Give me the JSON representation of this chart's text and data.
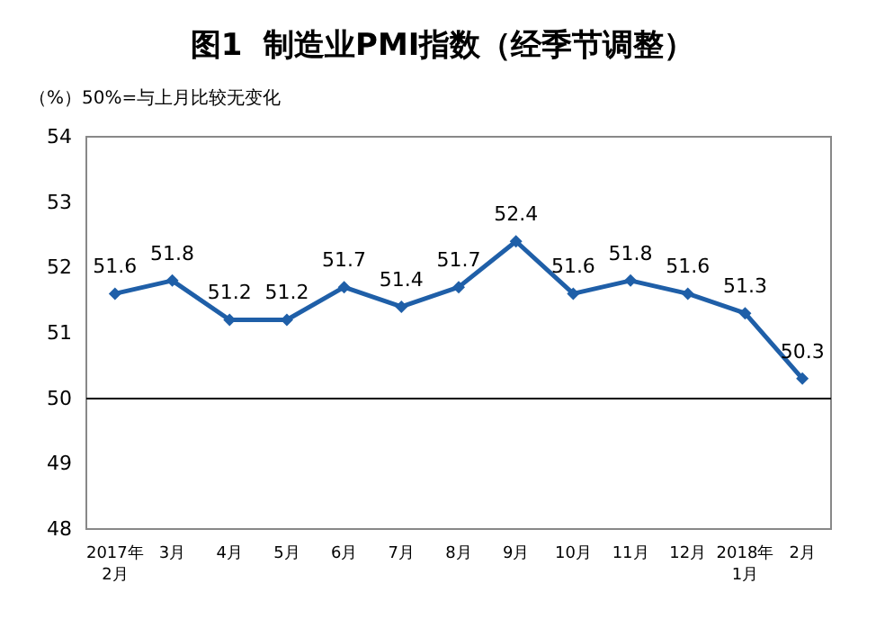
{
  "chart_data": {
    "type": "line",
    "title": "图1  制造业PMI指数（经季节调整）",
    "annotations": [
      "（%）50%=与上月比较无变化"
    ],
    "categories": [
      "2017年\n2月",
      "3月",
      "4月",
      "5月",
      "6月",
      "7月",
      "8月",
      "9月",
      "10月",
      "11月",
      "12月",
      "2018年\n1月",
      "2月"
    ],
    "series": [
      {
        "color": "#1f5fa8",
        "values": [
          51.6,
          51.8,
          51.2,
          51.2,
          51.7,
          51.4,
          51.7,
          52.4,
          51.6,
          51.8,
          51.6,
          51.3,
          50.3
        ]
      }
    ],
    "ylim": [
      48,
      54
    ],
    "yticks": [
      48,
      49,
      50,
      51,
      52,
      53,
      54
    ],
    "ref_lines": [
      {
        "axis": "y",
        "value": 50,
        "color": "#000000"
      }
    ],
    "data_labels": true,
    "marker": "diamond"
  }
}
